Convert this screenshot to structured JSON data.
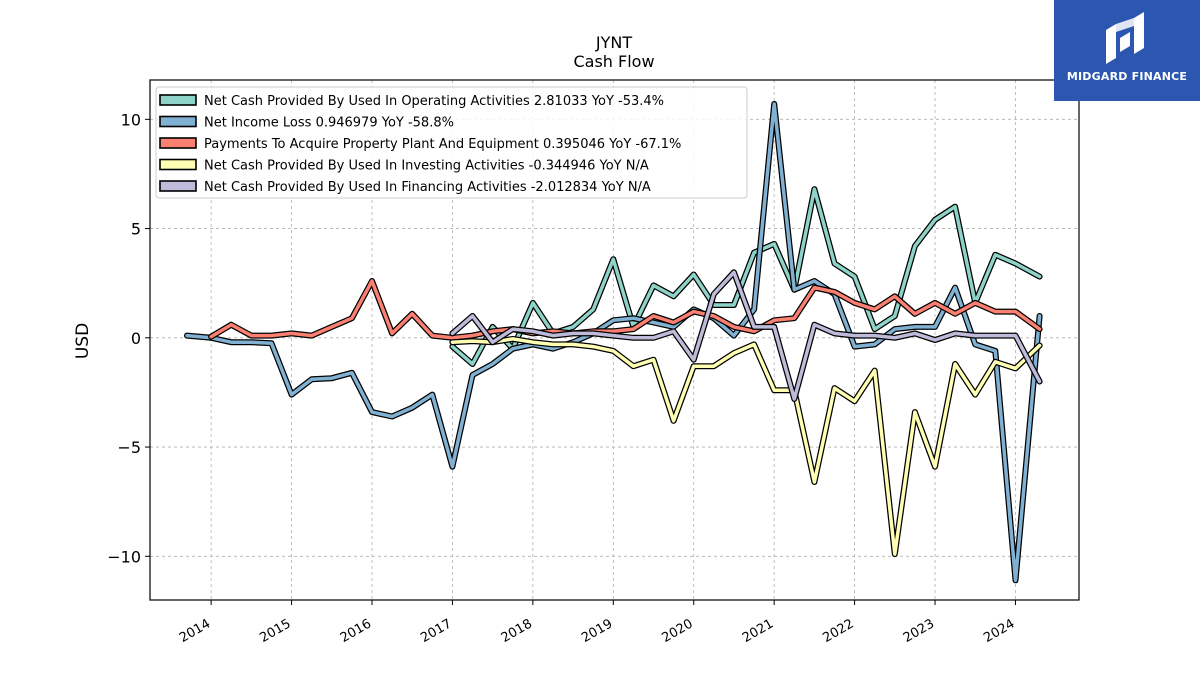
{
  "brand": {
    "name": "MIDGARD FINANCE"
  },
  "chart_data": {
    "type": "line",
    "title": "JYNT",
    "subtitle": "Cash Flow",
    "xlabel": "",
    "ylabel": "USD",
    "xlim": [
      2013.24,
      2024.79
    ],
    "ylim": [
      -12.0,
      11.8
    ],
    "yticks": [
      -10,
      -5,
      0,
      5,
      10
    ],
    "ytick_labels": [
      "−10",
      "−5",
      "0",
      "5",
      "10"
    ],
    "xticks": [
      2014,
      2015,
      2016,
      2017,
      2018,
      2019,
      2020,
      2021,
      2022,
      2023,
      2024
    ],
    "xtick_labels": [
      "2014",
      "2015",
      "2016",
      "2017",
      "2018",
      "2019",
      "2020",
      "2021",
      "2022",
      "2023",
      "2024"
    ],
    "grid": true,
    "legend_position": "top-left",
    "series": [
      {
        "name": "Net Cash Provided By Used In Operating Activities",
        "legend": "Net Cash Provided By Used In Operating Activities  2.81033 YoY -53.4%",
        "color": "#8dd3c7",
        "x": [
          2017.0,
          2017.25,
          2017.5,
          2017.75,
          2018.0,
          2018.25,
          2018.5,
          2018.75,
          2019.0,
          2019.25,
          2019.5,
          2019.75,
          2020.0,
          2020.25,
          2020.5,
          2020.75,
          2021.0,
          2021.25,
          2021.5,
          2021.75,
          2022.0,
          2022.25,
          2022.5,
          2022.75,
          2023.0,
          2023.25,
          2023.5,
          2023.75,
          2024.0,
          2024.3
        ],
        "y": [
          -0.4,
          -1.2,
          0.5,
          -0.5,
          1.6,
          0.2,
          0.5,
          1.3,
          3.6,
          0.5,
          2.4,
          1.9,
          2.9,
          1.5,
          1.5,
          3.9,
          4.3,
          2.2,
          6.8,
          3.4,
          2.8,
          0.4,
          1.0,
          4.2,
          5.4,
          6.0,
          1.6,
          3.8,
          3.4,
          2.8
        ]
      },
      {
        "name": "Net Income Loss",
        "legend": "Net Income Loss  0.946979 YoY -58.8%",
        "color": "#80b1d3",
        "x": [
          2013.7,
          2014.0,
          2014.25,
          2014.5,
          2014.75,
          2015.0,
          2015.25,
          2015.5,
          2015.75,
          2016.0,
          2016.25,
          2016.5,
          2016.75,
          2017.0,
          2017.25,
          2017.5,
          2017.75,
          2018.0,
          2018.25,
          2018.5,
          2018.75,
          2019.0,
          2019.25,
          2019.5,
          2019.75,
          2020.0,
          2020.25,
          2020.5,
          2020.75,
          2021.0,
          2021.25,
          2021.5,
          2021.75,
          2022.0,
          2022.25,
          2022.5,
          2022.75,
          2023.0,
          2023.25,
          2023.5,
          2023.75,
          2024.0,
          2024.3
        ],
        "y": [
          0.1,
          0.0,
          -0.2,
          -0.2,
          -0.25,
          -2.6,
          -1.9,
          -1.85,
          -1.6,
          -3.4,
          -3.6,
          -3.2,
          -2.6,
          -5.9,
          -1.7,
          -1.2,
          -0.5,
          -0.3,
          -0.5,
          -0.2,
          0.2,
          0.8,
          0.9,
          0.7,
          0.5,
          1.3,
          0.9,
          0.1,
          1.3,
          10.7,
          2.2,
          2.6,
          2.0,
          -0.4,
          -0.3,
          0.4,
          0.5,
          0.5,
          2.3,
          -0.3,
          -0.6,
          -11.1,
          1.0
        ]
      },
      {
        "name": "Payments To Acquire Property Plant And Equipment",
        "legend": "Payments To Acquire Property Plant And Equipment  0.395046 YoY -67.1%",
        "color": "#fb8072",
        "x": [
          2014.0,
          2014.25,
          2014.5,
          2014.75,
          2015.0,
          2015.25,
          2015.5,
          2015.75,
          2016.0,
          2016.25,
          2016.5,
          2016.75,
          2017.0,
          2017.25,
          2017.5,
          2017.75,
          2018.0,
          2018.25,
          2018.5,
          2018.75,
          2019.0,
          2019.25,
          2019.5,
          2019.75,
          2020.0,
          2020.25,
          2020.5,
          2020.75,
          2021.0,
          2021.25,
          2021.5,
          2021.75,
          2022.0,
          2022.25,
          2022.5,
          2022.75,
          2023.0,
          2023.25,
          2023.5,
          2023.75,
          2024.0,
          2024.3
        ],
        "y": [
          0.05,
          0.6,
          0.1,
          0.1,
          0.2,
          0.1,
          0.5,
          0.9,
          2.6,
          0.2,
          1.1,
          0.1,
          0.0,
          0.1,
          0.3,
          0.4,
          0.2,
          0.3,
          0.2,
          0.3,
          0.3,
          0.4,
          1.0,
          0.7,
          1.2,
          1.0,
          0.5,
          0.3,
          0.8,
          0.9,
          2.3,
          2.1,
          1.6,
          1.3,
          1.9,
          1.1,
          1.6,
          1.1,
          1.6,
          1.2,
          1.2,
          0.4
        ]
      },
      {
        "name": "Net Cash Provided By Used In Investing Activities",
        "legend": "Net Cash Provided By Used In Investing Activities  -0.344946 YoY N/A",
        "color": "#ffffb3",
        "x": [
          2017.0,
          2017.25,
          2017.5,
          2017.75,
          2018.0,
          2018.25,
          2018.5,
          2018.75,
          2019.0,
          2019.25,
          2019.5,
          2019.75,
          2020.0,
          2020.25,
          2020.5,
          2020.75,
          2021.0,
          2021.25,
          2021.5,
          2021.75,
          2022.0,
          2022.25,
          2022.5,
          2022.75,
          2023.0,
          2023.25,
          2023.5,
          2023.75,
          2024.0,
          2024.3
        ],
        "y": [
          -0.2,
          -0.15,
          -0.2,
          -0.05,
          -0.2,
          -0.3,
          -0.3,
          -0.4,
          -0.6,
          -1.3,
          -1.0,
          -3.8,
          -1.3,
          -1.3,
          -0.7,
          -0.3,
          -2.4,
          -2.4,
          -6.6,
          -2.3,
          -2.9,
          -1.5,
          -9.9,
          -3.4,
          -5.9,
          -1.2,
          -2.6,
          -1.1,
          -1.4,
          -0.35
        ]
      },
      {
        "name": "Net Cash Provided By Used In Financing Activities",
        "legend": "Net Cash Provided By Used In Financing Activities  -2.012834 YoY N/A",
        "color": "#bebada",
        "x": [
          2017.0,
          2017.25,
          2017.5,
          2017.75,
          2018.0,
          2018.25,
          2018.5,
          2018.75,
          2019.0,
          2019.25,
          2019.5,
          2019.75,
          2020.0,
          2020.25,
          2020.5,
          2020.75,
          2021.0,
          2021.25,
          2021.5,
          2021.75,
          2022.0,
          2022.25,
          2022.5,
          2022.75,
          2023.0,
          2023.25,
          2023.5,
          2023.75,
          2024.0,
          2024.3
        ],
        "y": [
          0.2,
          1.0,
          -0.2,
          0.4,
          0.3,
          0.1,
          0.2,
          0.2,
          0.1,
          0.0,
          0.0,
          0.3,
          -1.0,
          2.0,
          3.0,
          0.5,
          0.5,
          -2.8,
          0.6,
          0.2,
          0.1,
          0.1,
          0.0,
          0.2,
          -0.1,
          0.2,
          0.1,
          0.1,
          0.1,
          -2.0
        ]
      }
    ]
  }
}
